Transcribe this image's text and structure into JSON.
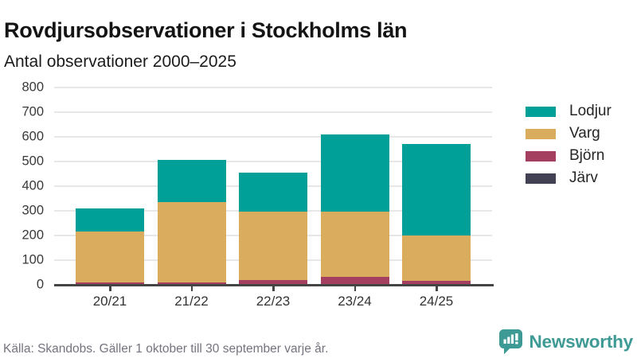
{
  "header": {
    "title": "Rovdjursobservationer i Stockholms län",
    "subtitle": "Antal observationer 2000–2025"
  },
  "chart_data": {
    "type": "bar",
    "stacked": true,
    "title": "Rovdjursobservationer i Stockholms län",
    "subtitle": "Antal observationer 2000–2025",
    "categories": [
      "20/21",
      "21/22",
      "22/23",
      "23/24",
      "24/25"
    ],
    "series": [
      {
        "name": "Lodjur",
        "color": "#00a099",
        "values": [
          95,
          170,
          158,
          313,
          371
        ]
      },
      {
        "name": "Varg",
        "color": "#d9ac5e",
        "values": [
          205,
          325,
          277,
          264,
          183
        ]
      },
      {
        "name": "Björn",
        "color": "#a43f60",
        "values": [
          8,
          8,
          18,
          30,
          14
        ]
      },
      {
        "name": "Järv",
        "color": "#424153",
        "values": [
          2,
          2,
          2,
          3,
          2
        ]
      }
    ],
    "totals": [
      310,
      505,
      455,
      610,
      570
    ],
    "ylim": [
      0,
      800
    ],
    "yticks": [
      0,
      100,
      200,
      300,
      400,
      500,
      600,
      700,
      800
    ],
    "grid": true,
    "legend_position": "right",
    "stack_order_top_to_bottom": [
      "Lodjur",
      "Varg",
      "Björn",
      "Järv"
    ]
  },
  "footer": {
    "source": "Källa: Skandobs. Gäller 1 oktober till 30 september varje år.",
    "brand": "Newsworthy",
    "brand_color": "#3e9a94"
  }
}
